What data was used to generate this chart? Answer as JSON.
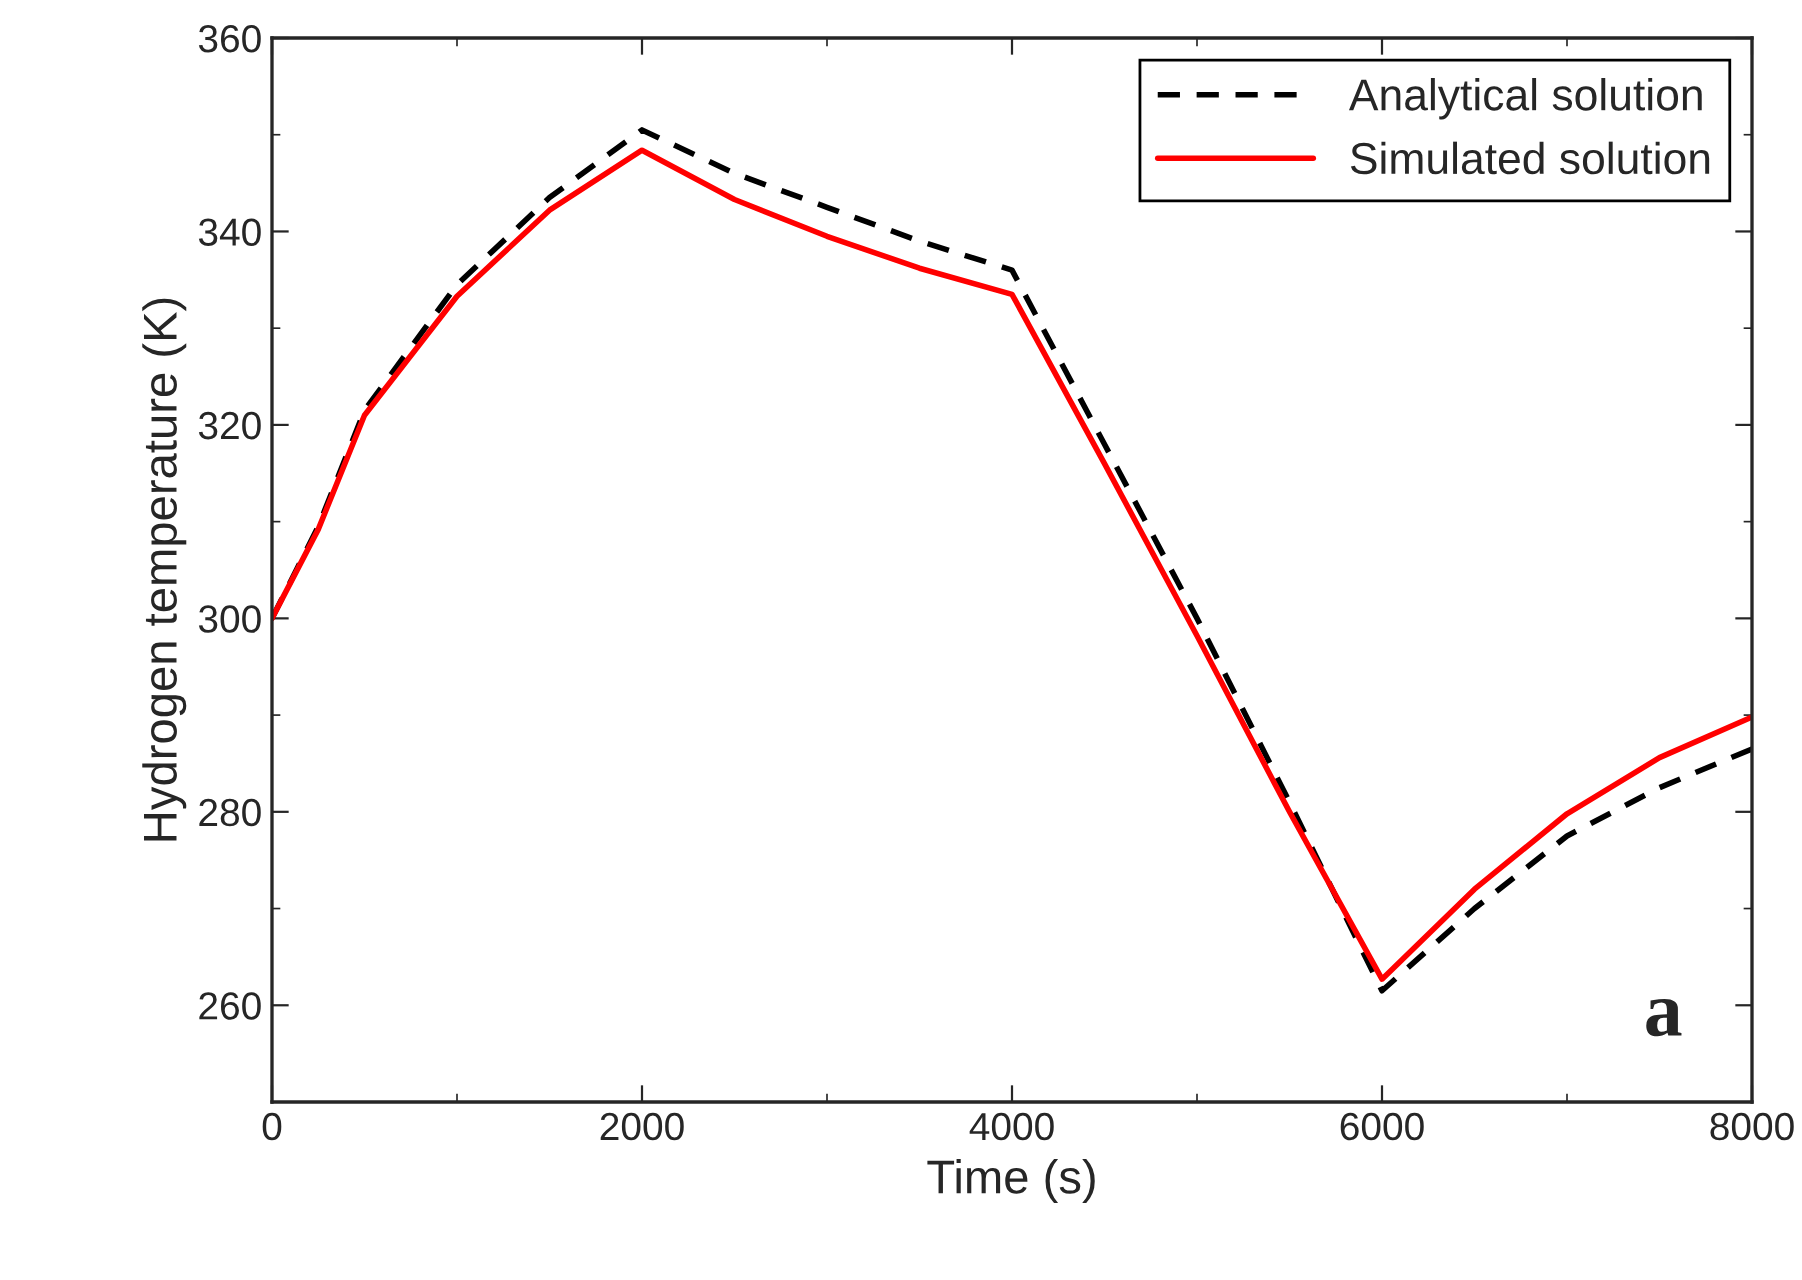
{
  "chart_data": {
    "type": "line",
    "xlabel": "Time (s)",
    "ylabel": "Hydrogen temperature (K)",
    "xlim": [
      0,
      8000
    ],
    "xticks": [
      0,
      2000,
      4000,
      6000,
      8000
    ],
    "ylim": [
      250,
      360
    ],
    "yticks": [
      260,
      280,
      300,
      320,
      340,
      360
    ],
    "grid": false,
    "legend": "top right",
    "marker": "none",
    "x": [
      0,
      250,
      500,
      1000,
      1500,
      2000,
      2500,
      3000,
      3500,
      4000,
      4500,
      5000,
      5500,
      6000,
      6500,
      7000,
      7500,
      8000
    ],
    "series": [
      {
        "name": "Analytical solution",
        "color": "#000000",
        "line_style": "dashed",
        "values": [
          300,
          309.5,
          321.5,
          334.5,
          343.5,
          350.5,
          346,
          342.5,
          339,
          336,
          318,
          300,
          281,
          261.5,
          270,
          277.5,
          282.5,
          286.5
        ]
      },
      {
        "name": "Simulated solution",
        "color": "#ff0000",
        "line_style": "solid",
        "values": [
          300,
          309.2,
          321,
          333.3,
          342.2,
          348.4,
          343.3,
          339.5,
          336.2,
          333.5,
          316,
          298.2,
          280,
          262.7,
          272,
          279.8,
          285.6,
          289.8
        ]
      }
    ],
    "annotations": [
      "a"
    ]
  }
}
